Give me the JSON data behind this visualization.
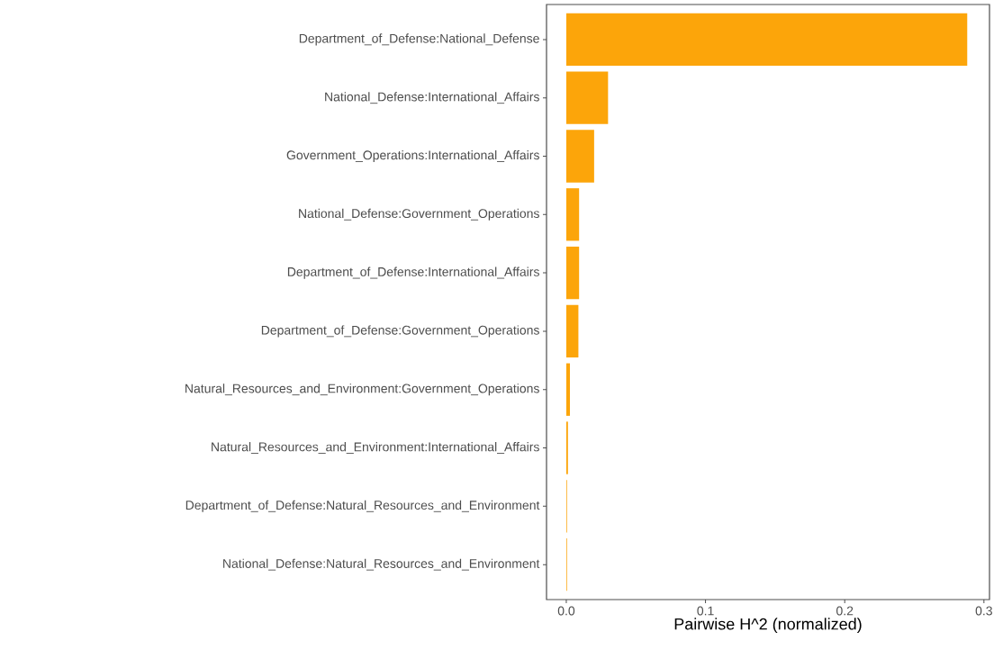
{
  "chart_data": {
    "type": "bar",
    "orientation": "horizontal",
    "xlabel": "Pairwise H^2 (normalized)",
    "categories": [
      "Department_of_Defense:National_Defense",
      "National_Defense:International_Affairs",
      "Government_Operations:International_Affairs",
      "National_Defense:Government_Operations",
      "Department_of_Defense:International_Affairs",
      "Department_of_Defense:Government_Operations",
      "Natural_Resources_and_Environment:Government_Operations",
      "Natural_Resources_and_Environment:International_Affairs",
      "Department_of_Defense:Natural_Resources_and_Environment",
      "National_Defense:Natural_Resources_and_Environment"
    ],
    "values": [
      0.288,
      0.03,
      0.02,
      0.0092,
      0.0092,
      0.0087,
      0.0026,
      0.0012,
      0.0005,
      0.0005
    ],
    "color": "#fca50a",
    "xlim": [
      -0.0142,
      0.304
    ],
    "xticks": [
      {
        "value": 0,
        "label": "0.0"
      },
      0.1,
      0.2,
      0.3
    ],
    "grid": false
  }
}
